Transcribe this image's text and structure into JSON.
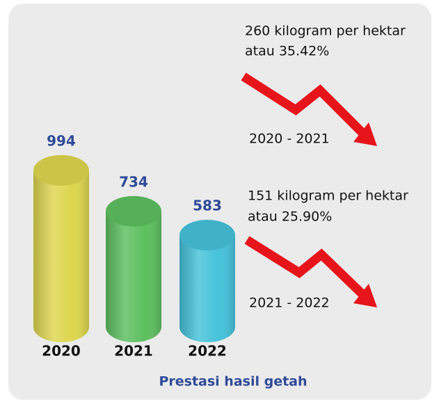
{
  "chart_data": {
    "type": "bar",
    "title": "Prestasi hasil getah",
    "categories": [
      "2020",
      "2021",
      "2022"
    ],
    "values": [
      994,
      734,
      583
    ],
    "colors": [
      "#ddd54e",
      "#5dbf5f",
      "#45c2da"
    ],
    "annotations": [
      {
        "text": [
          "260 kilogram per hektar",
          "atau 35.42%"
        ],
        "period": "2020 - 2021"
      },
      {
        "text": [
          "151 kilogram per hektar",
          "atau 25.90%"
        ],
        "period": "2021 - 2022"
      }
    ]
  }
}
